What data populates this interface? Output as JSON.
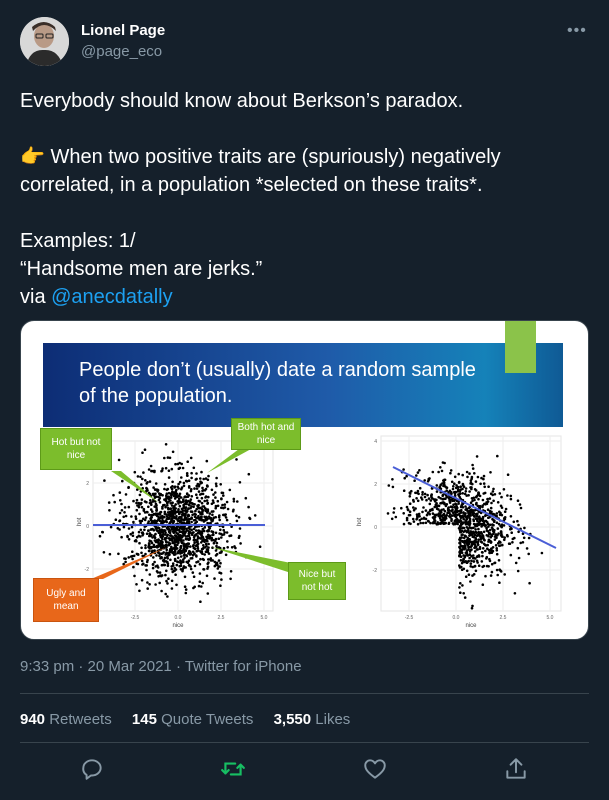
{
  "author": {
    "name": "Lionel Page",
    "handle": "@page_eco"
  },
  "menu": {
    "more_label": "•••"
  },
  "tweet": {
    "line1": "Everybody should know about Berkson’s paradox.",
    "emoji": "👉",
    "line2": " When two positive traits are (spuriously) negatively correlated, in a population *selected on these traits*.",
    "line3": "Examples: 1/",
    "line4": "“Handsome men are jerks.”",
    "via_prefix": "via ",
    "mention": "@anecdatally"
  },
  "media": {
    "banner_title": "People don’t (usually) date a random sample of the population.",
    "callouts": {
      "hot_not_nice": "Hot but not nice",
      "both": "Both hot and nice",
      "ugly_mean": "Ugly and mean",
      "nice_not_hot": "Nice but not hot"
    },
    "left_plot": {
      "xlabel": "nice",
      "ylabel": "hot",
      "xticks": [
        "-2.5",
        "0.0",
        "2.5",
        "5.0"
      ],
      "yticks": [
        "2",
        "0",
        "-2"
      ]
    },
    "right_plot": {
      "xlabel": "nice",
      "ylabel": "hot",
      "xticks": [
        "-2.5",
        "0.0",
        "2.5",
        "5.0"
      ],
      "yticks": [
        "4",
        "2",
        "0",
        "-2"
      ]
    }
  },
  "meta": {
    "time": "9:33 pm",
    "sep": " · ",
    "date": "20 Mar 2021",
    "client": "Twitter for iPhone"
  },
  "stats": {
    "retweets_count": "940",
    "retweets_label": " Retweets",
    "quotes_count": "145",
    "quotes_label": " Quote Tweets",
    "likes_count": "3,550",
    "likes_label": " Likes"
  },
  "colors": {
    "background": "#15202b",
    "text_secondary": "#8899a6",
    "link": "#1da1f2",
    "retweet_active": "#17bf63",
    "divider": "#38444d"
  },
  "icons": [
    "reply-icon",
    "retweet-icon",
    "like-icon",
    "share-icon",
    "more-icon"
  ]
}
